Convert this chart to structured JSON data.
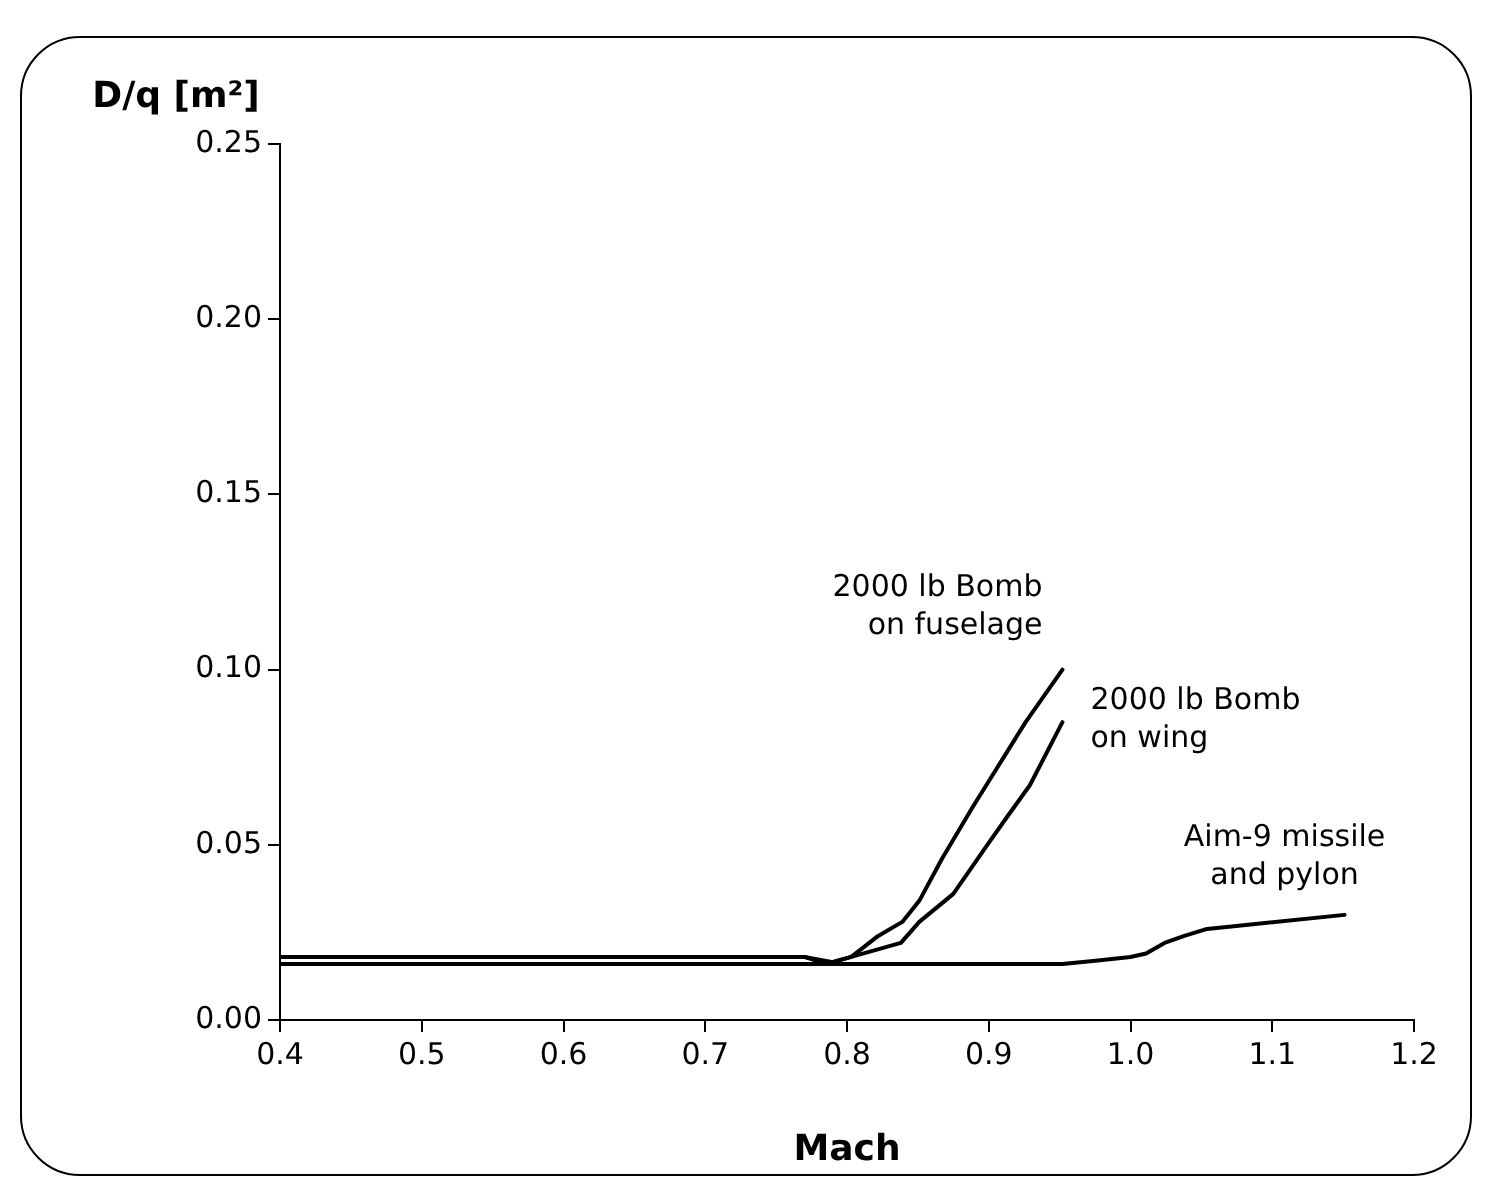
{
  "chart_data": {
    "type": "line",
    "xlabel": "Mach",
    "ylabel": "D/q [m²]",
    "xlim": [
      0.4,
      1.2
    ],
    "ylim": [
      0,
      0.25
    ],
    "xticks": [
      0.4,
      0.5,
      0.6,
      0.7,
      0.8,
      0.9,
      {
        "value": 1,
        "label": "1.0"
      },
      1.1,
      1.2
    ],
    "yticks": [
      {
        "value": 0,
        "label": "0.00"
      },
      0.05,
      {
        "value": 0.1,
        "label": "0.10"
      },
      0.15,
      {
        "value": 0.2,
        "label": "0.20"
      },
      0.25
    ],
    "grid": false,
    "legend": false,
    "marker": "none",
    "line_style": "solid",
    "series": [
      {
        "name": "2000 lb Bomb on fuselage",
        "color": "#000000",
        "x": [
          0.4,
          0.77,
          0.79,
          0.803,
          0.822,
          0.839,
          0.851,
          0.867,
          0.889,
          0.926,
          0.952
        ],
        "values": [
          0.018,
          0.018,
          0.0165,
          0.018,
          0.024,
          0.028,
          0.034,
          0.046,
          0.061,
          0.085,
          0.1
        ]
      },
      {
        "name": "2000 lb Bomb on wing",
        "color": "#000000",
        "x": [
          0.4,
          0.77,
          0.785,
          0.803,
          0.838,
          0.851,
          0.875,
          0.899,
          0.913,
          0.929,
          0.952
        ],
        "values": [
          0.018,
          0.018,
          0.016,
          0.018,
          0.022,
          0.028,
          0.036,
          0.05,
          0.058,
          0.067,
          0.085
        ]
      },
      {
        "name": "Aim-9 missile and pylon",
        "color": "#000000",
        "x": [
          0.4,
          0.952,
          0.977,
          1.0,
          1.011,
          1.024,
          1.038,
          1.054,
          1.078,
          1.151
        ],
        "values": [
          0.016,
          0.016,
          0.017,
          0.018,
          0.019,
          0.022,
          0.024,
          0.026,
          0.027,
          0.03
        ]
      }
    ]
  }
}
